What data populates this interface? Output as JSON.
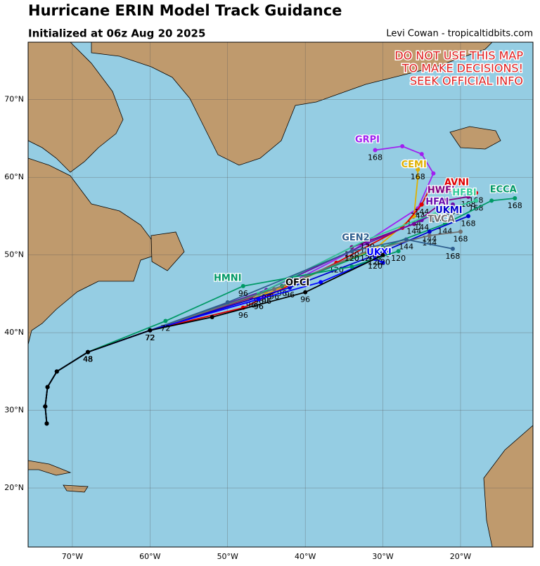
{
  "header": {
    "title": "Hurricane ERIN Model Track Guidance",
    "subtitle": "Initialized at 06z Aug 20 2025",
    "credit": "Levi Cowan - tropicaltidbits.com"
  },
  "warning": [
    "DO NOT USE THIS MAP",
    "TO MAKE DECISIONS!",
    "SEEK OFFICIAL INFO"
  ],
  "map": {
    "lon_range": [
      -75.7,
      -10.67
    ],
    "lat_range": [
      12.4,
      77.4
    ],
    "lat_ticks": [
      {
        "value": 20,
        "label": "20°N"
      },
      {
        "value": 30,
        "label": "30°N"
      },
      {
        "value": 40,
        "label": "40°N"
      },
      {
        "value": 50,
        "label": "50°N"
      },
      {
        "value": 60,
        "label": "60°N"
      },
      {
        "value": 70,
        "label": "70°N"
      }
    ],
    "lon_ticks": [
      {
        "value": -70,
        "label": "70°W"
      },
      {
        "value": -60,
        "label": "60°W"
      },
      {
        "value": -50,
        "label": "50°W"
      },
      {
        "value": -40,
        "label": "40°W"
      },
      {
        "value": -30,
        "label": "30°W"
      },
      {
        "value": -20,
        "label": "20°W"
      }
    ]
  },
  "tracks": [
    {
      "name": "GRPI",
      "color": "#a020f0",
      "label_at": [
        -32,
        64.8
      ],
      "lon": [
        -73.3,
        -73.5,
        -73.2,
        -72,
        -68,
        -60,
        -46,
        -34,
        -25.5,
        -23.5,
        -25,
        -27.5,
        -31
      ],
      "lat": [
        28.3,
        30.5,
        33,
        35,
        37.5,
        40.3,
        44.3,
        50.5,
        56,
        60.5,
        63,
        64,
        63.5
      ],
      "hours": [
        null,
        null,
        null,
        null,
        48,
        72,
        96,
        120,
        144,
        null,
        null,
        null,
        168
      ]
    },
    {
      "name": "CEMI",
      "color": "#e0b000",
      "label_at": [
        -26,
        61.6
      ],
      "lon": [
        -73.3,
        -73.5,
        -73.2,
        -72,
        -68,
        -60,
        -45,
        -31,
        -26,
        -25.5,
        -25.5
      ],
      "lat": [
        28.3,
        30.5,
        33,
        35,
        37.5,
        40.3,
        45,
        50.8,
        55,
        60,
        61
      ],
      "hours": [
        null,
        null,
        null,
        null,
        48,
        72,
        96,
        120,
        144,
        null,
        168
      ]
    },
    {
      "name": "AVNI",
      "color": "#e00000",
      "label_at": [
        -20.5,
        59.3
      ],
      "lon": [
        -73.3,
        -73.5,
        -73.2,
        -72,
        -68,
        -60,
        -48,
        -36,
        -27.5,
        -25,
        -24,
        -18
      ],
      "lat": [
        28.3,
        30.5,
        33,
        35,
        37.5,
        40.3,
        43.2,
        49,
        53.5,
        56.5,
        58.5,
        58
      ],
      "hours": [
        null,
        null,
        null,
        null,
        48,
        72,
        96,
        120,
        null,
        144,
        null,
        168
      ]
    },
    {
      "name": "HWFI",
      "color": "#800080",
      "label_at": [
        -22.5,
        58.3
      ],
      "lon": [
        -73.3,
        -73.5,
        -73.2,
        -72,
        -68,
        -60,
        -47,
        -34,
        -26,
        -22,
        -19
      ],
      "lat": [
        28.3,
        30.5,
        33,
        35,
        37.5,
        40.3,
        44.5,
        51,
        54,
        57,
        57.5
      ],
      "hours": [
        null,
        null,
        null,
        null,
        48,
        72,
        96,
        120,
        144,
        null,
        168
      ]
    },
    {
      "name": "HFAI",
      "color": "#6a0dad",
      "label_at": [
        -23,
        56.8
      ],
      "lon": [
        -73.3,
        -73.5,
        -73.2,
        -72,
        -68,
        -60,
        -45,
        -32,
        -25,
        -21
      ],
      "lat": [
        28.3,
        30.5,
        33,
        35,
        37.5,
        40.3,
        45.5,
        51.5,
        54.5,
        56.5
      ],
      "hours": [
        null,
        null,
        null,
        null,
        48,
        72,
        96,
        120,
        144,
        168
      ]
    },
    {
      "name": "HFBI",
      "color": "#33cc99",
      "label_at": [
        -19.5,
        58
      ],
      "lon": [
        -73.3,
        -73.5,
        -73.2,
        -72,
        -68,
        -60,
        -46,
        -32,
        -23,
        -18
      ],
      "lat": [
        28.3,
        30.5,
        33,
        35,
        37.5,
        40.3,
        45,
        52,
        55.5,
        57
      ],
      "hours": [
        null,
        null,
        null,
        null,
        48,
        72,
        96,
        120,
        144,
        168
      ]
    },
    {
      "name": "ECCA",
      "color": "#009966",
      "label_at": [
        -14.5,
        58.4
      ],
      "lon": [
        -73.3,
        -73.5,
        -73.2,
        -72,
        -68,
        -60,
        -43,
        -30,
        -22,
        -16,
        -13
      ],
      "lat": [
        28.3,
        30.5,
        33,
        35,
        37.5,
        40.3,
        46,
        51,
        54,
        57,
        57.3
      ],
      "hours": [
        null,
        null,
        null,
        null,
        48,
        72,
        96,
        120,
        144,
        null,
        168
      ]
    },
    {
      "name": "UKMI",
      "color": "#0000cc",
      "label_at": [
        -21.5,
        55.7
      ],
      "lon": [
        -73.3,
        -73.5,
        -73.2,
        -72,
        -68,
        -60,
        -42,
        -31,
        -24,
        -19
      ],
      "lat": [
        28.3,
        30.5,
        33,
        35,
        37.5,
        40.3,
        45.8,
        50,
        53,
        55
      ],
      "hours": [
        null,
        null,
        null,
        null,
        48,
        72,
        96,
        120,
        144,
        168
      ]
    },
    {
      "name": "TVCA",
      "color": "#707070",
      "label_at": [
        -22.5,
        54.6
      ],
      "lon": [
        -73.3,
        -73.5,
        -73.2,
        -72,
        -68,
        -60,
        -44,
        -32,
        -24,
        -20
      ],
      "lat": [
        28.3,
        30.5,
        33,
        35,
        37.5,
        40.3,
        45.6,
        50.5,
        52.5,
        53
      ],
      "hours": [
        null,
        null,
        null,
        null,
        48,
        72,
        96,
        120,
        144,
        168
      ]
    },
    {
      "name": "GEN2",
      "color": "#2f5f8f",
      "label_at": [
        -33.5,
        52.2
      ],
      "lon": [
        -73.3,
        -73.5,
        -73.2,
        -72,
        -68,
        -60,
        -50,
        -34,
        -27,
        -21
      ],
      "lat": [
        28.3,
        30.5,
        33,
        35,
        37.5,
        40.3,
        43.9,
        50.5,
        52,
        50.8
      ],
      "hours": [
        null,
        null,
        null,
        null,
        48,
        72,
        null,
        120,
        144,
        168
      ]
    },
    {
      "name": "UKXI",
      "color": "#0000ff",
      "label_at": [
        -30.5,
        50.3
      ],
      "lon": [
        -73.3,
        -73.5,
        -73.2,
        -72,
        -68,
        -60,
        -46,
        -38,
        -31,
        -30
      ],
      "lat": [
        28.3,
        30.5,
        33,
        35,
        37.5,
        40.3,
        44.3,
        46.5,
        49.5,
        49
      ],
      "hours": [
        null,
        null,
        null,
        null,
        48,
        72,
        96,
        null,
        120,
        null
      ]
    },
    {
      "name": "HMNI",
      "color": "#009966",
      "label_at": [
        -50,
        47
      ],
      "lon": [
        -73.3,
        -73.5,
        -73.2,
        -72,
        -68,
        -58,
        -48,
        -34,
        -28
      ],
      "lat": [
        28.3,
        30.5,
        33,
        35,
        37.5,
        41.5,
        46,
        48.5,
        50.5
      ],
      "hours": [
        null,
        null,
        null,
        null,
        48,
        72,
        96,
        null,
        120
      ]
    },
    {
      "name": "OFCI",
      "color": "#000000",
      "label_at": [
        -41,
        46.4
      ],
      "lon": [
        -73.3,
        -73.5,
        -73.2,
        -72,
        -68,
        -60,
        -52,
        -40,
        -30
      ],
      "lat": [
        28.3,
        30.5,
        33,
        35,
        37.5,
        40.3,
        42,
        45.2,
        50
      ],
      "hours": [
        null,
        null,
        null,
        null,
        48,
        72,
        null,
        96,
        120
      ]
    }
  ]
}
